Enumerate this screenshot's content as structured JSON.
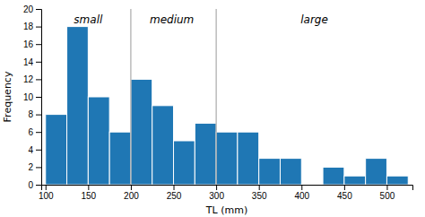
{
  "chart_data": {
    "type": "histogram",
    "bins": [
      100,
      125,
      150,
      175,
      200,
      225,
      250,
      275,
      300,
      325,
      350,
      375,
      400,
      425,
      450,
      475,
      500,
      525
    ],
    "values": [
      8,
      18,
      10,
      6,
      12,
      9,
      5,
      7,
      6,
      6,
      3,
      3,
      0,
      2,
      1,
      3,
      1
    ],
    "x_label": "TL (mm)",
    "y_label": "Frequency",
    "xlim": [
      95,
      530
    ],
    "ylim": [
      0,
      20
    ],
    "xticks": [
      100,
      150,
      200,
      250,
      300,
      350,
      400,
      450,
      500
    ],
    "yticks": [
      0,
      2,
      4,
      6,
      8,
      10,
      12,
      14,
      16,
      18,
      20
    ],
    "vlines": [
      200,
      300
    ],
    "annotations": [
      {
        "text": "small",
        "x": 150,
        "y": 19.3
      },
      {
        "text": "medium",
        "x": 248,
        "y": 19.3
      },
      {
        "text": "large",
        "x": 415,
        "y": 19.3
      }
    ],
    "grid": false
  }
}
